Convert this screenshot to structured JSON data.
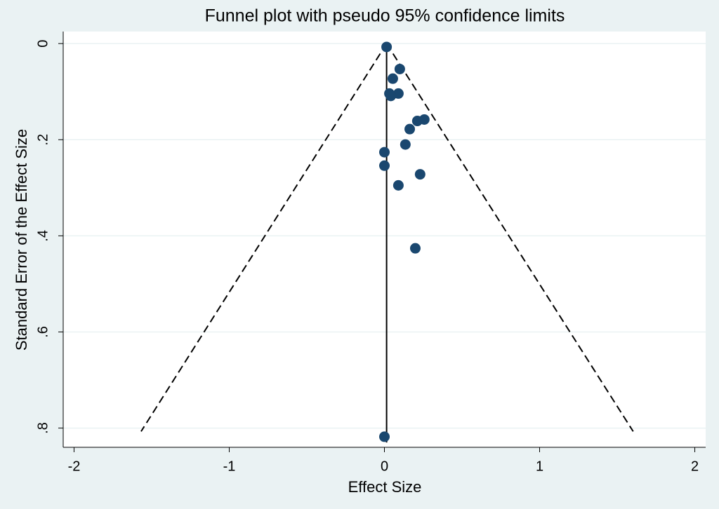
{
  "chart_data": {
    "type": "scatter",
    "title": "Funnel plot with pseudo 95% confidence limits",
    "x_label": "Effect Size",
    "y_label": "Standard Error of the Effect Size",
    "xlim": [
      -2.07,
      2.07
    ],
    "ylim": [
      -0.025,
      0.84
    ],
    "y_reversed": true,
    "xticks": [
      -2,
      -1,
      0,
      1,
      2
    ],
    "yticks": [
      0,
      {
        "value": 0.2,
        "label": ".2"
      },
      {
        "value": 0.4,
        "label": ".4"
      },
      {
        "value": 0.6,
        "label": ".6"
      },
      {
        "value": 0.8,
        "label": ".8"
      }
    ],
    "grid": true,
    "color": "#1a476f",
    "x": [
      0.014,
      0.099,
      0.054,
      0.032,
      0.09,
      0.041,
      0.212,
      0.257,
      0.163,
      0.135,
      0.0,
      0.0,
      0.23,
      0.09,
      0.199,
      0.0
    ],
    "values": [
      0.007,
      0.053,
      0.073,
      0.104,
      0.104,
      0.109,
      0.161,
      0.158,
      0.178,
      0.21,
      0.226,
      0.254,
      0.272,
      0.295,
      0.426,
      0.818
    ],
    "lines": [
      {
        "style": "solid",
        "x": [
          0.014,
          0.014
        ],
        "y": [
          0,
          0.83
        ]
      },
      {
        "style": "dashed",
        "x": [
          0.014,
          -1.568
        ],
        "y": [
          0,
          0.807
        ]
      },
      {
        "style": "dashed",
        "x": [
          0.014,
          1.603
        ],
        "y": [
          0,
          0.807
        ]
      }
    ]
  }
}
